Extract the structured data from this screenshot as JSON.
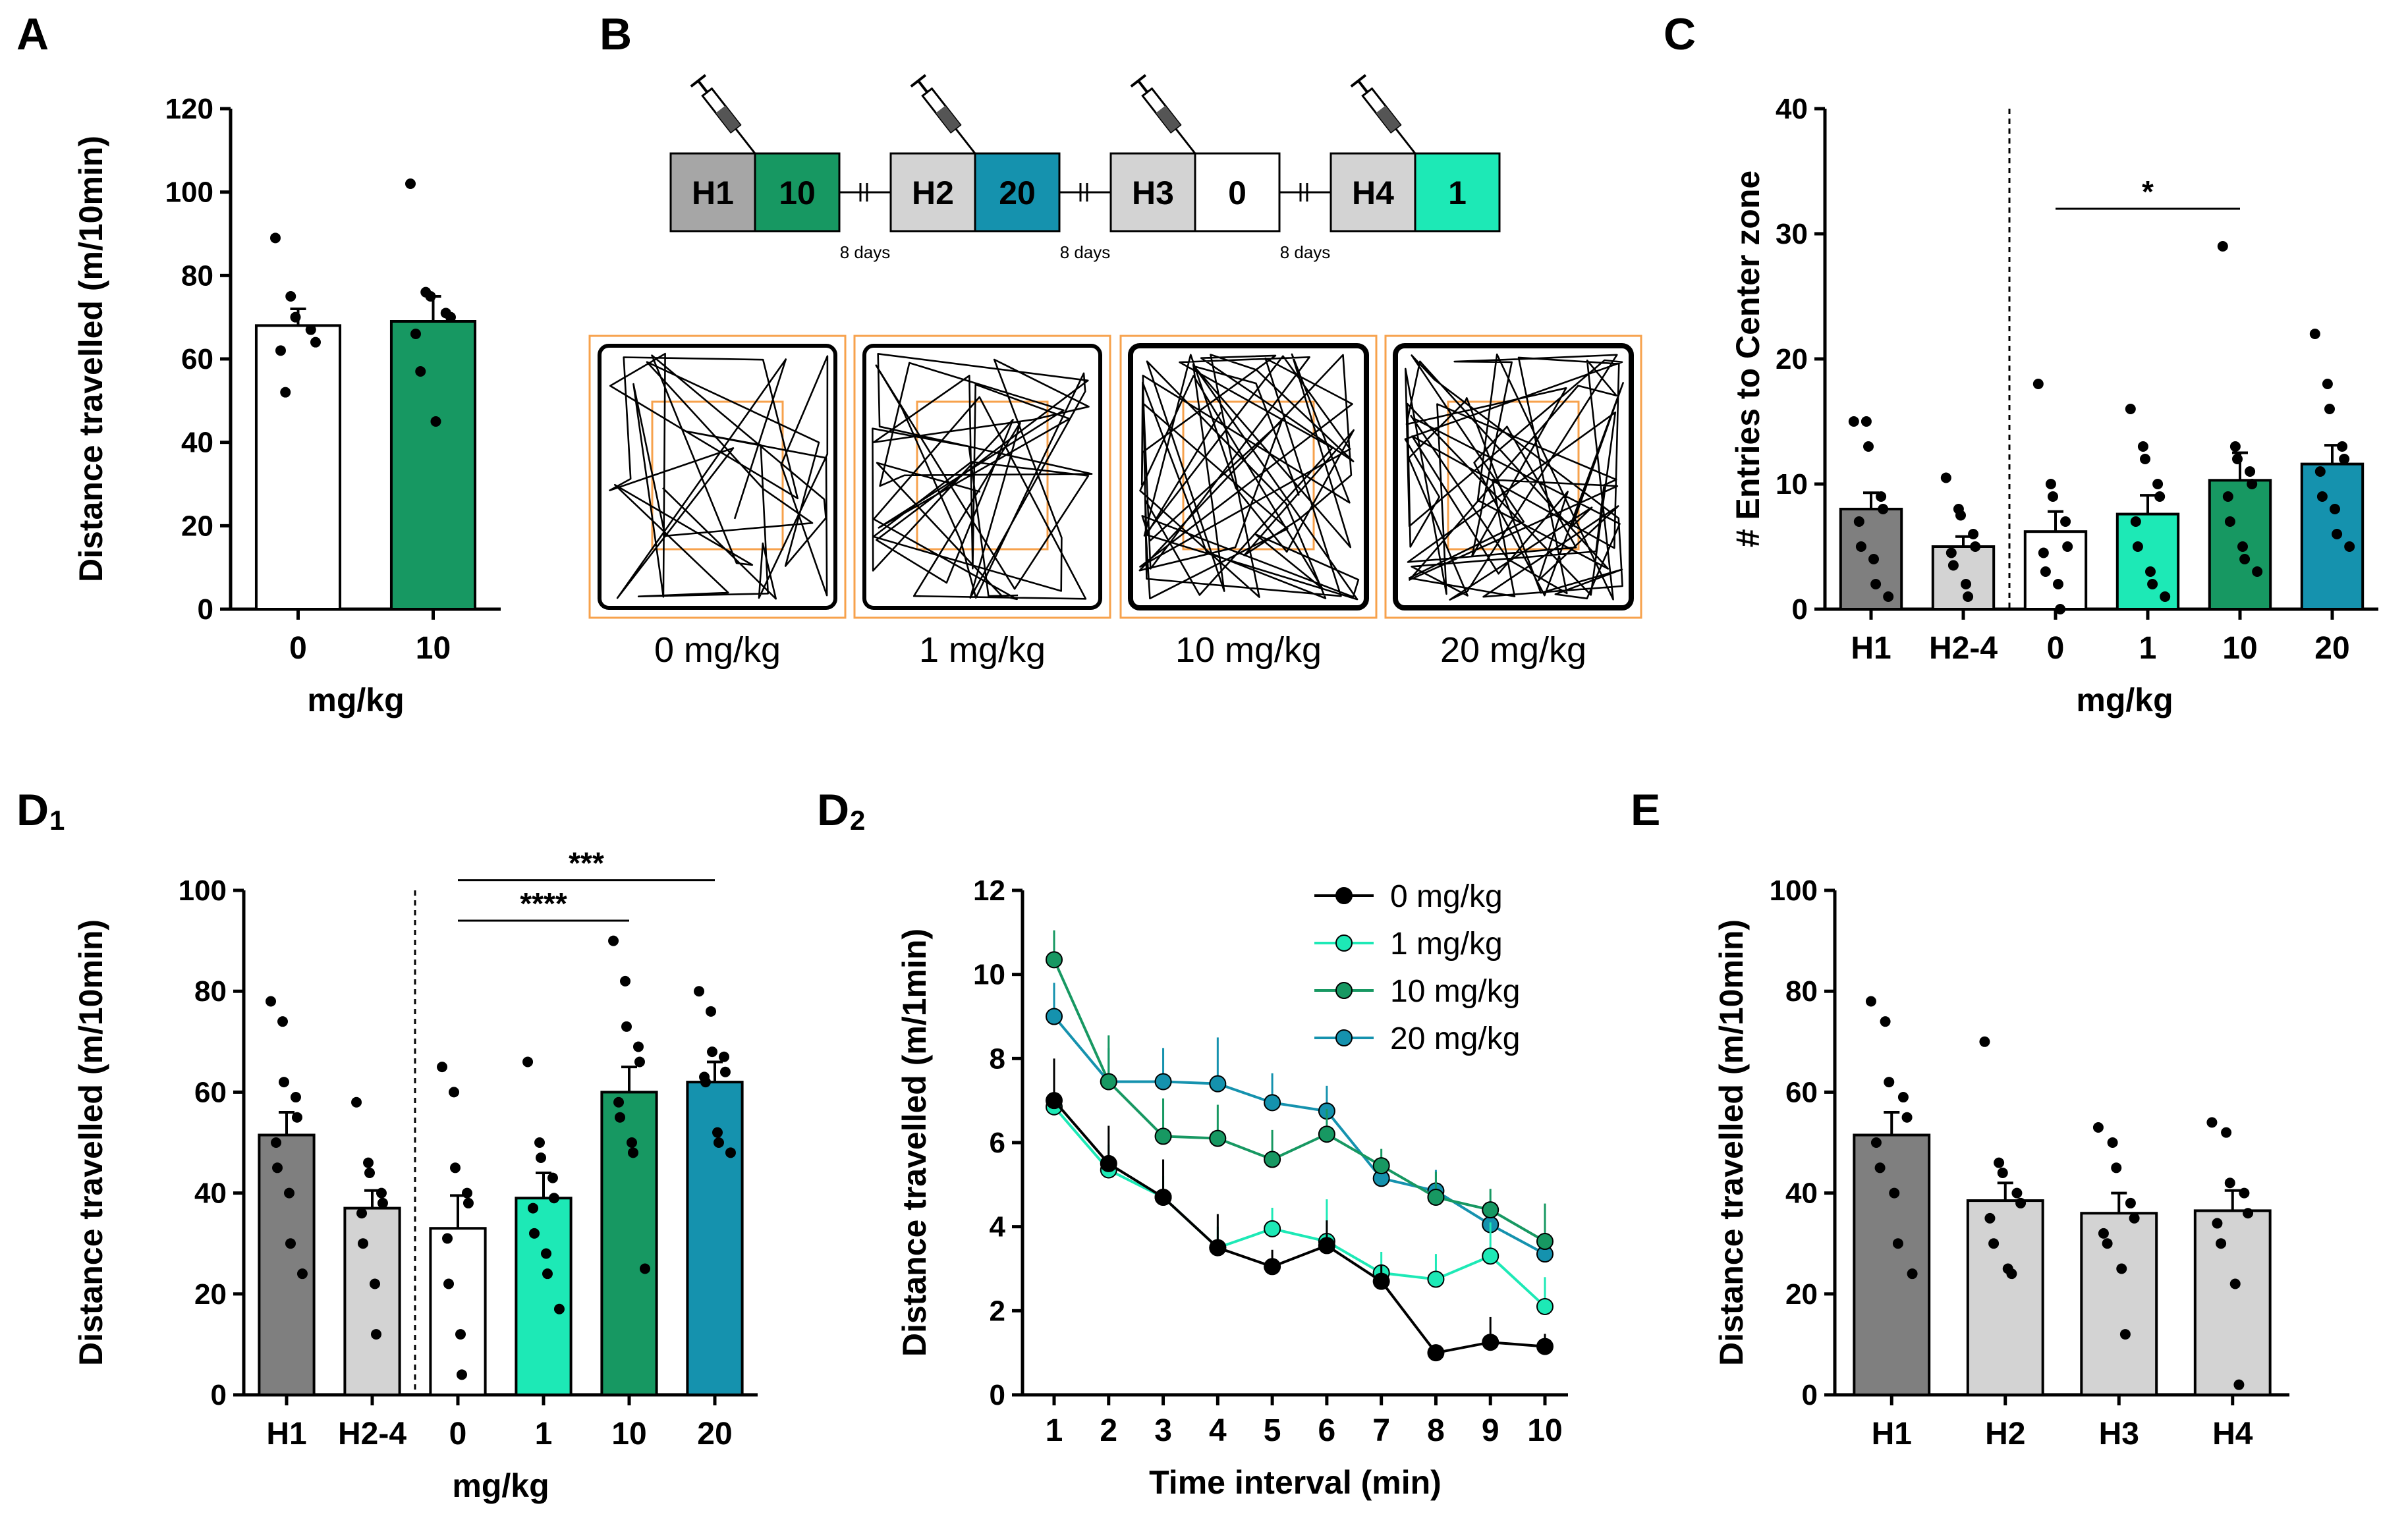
{
  "colors": {
    "H1": "#7f7f7f",
    "H": "#d3d3d3",
    "dose0": "#ffffff",
    "dose1": "#1de9b6",
    "dose10": "#179862",
    "dose20": "#1592ae",
    "line0": "#000000",
    "orange": "#f7a24c"
  },
  "panel_labels": {
    "A": "A",
    "B": "B",
    "C": "C",
    "D1": "D",
    "D1_sub": "1",
    "D2": "D",
    "D2_sub": "2",
    "E": "E"
  },
  "timeline": {
    "blocks": [
      {
        "habituation": "H1",
        "dose": "10",
        "dose_key": "dose10"
      },
      {
        "habituation": "H2",
        "dose": "20",
        "dose_key": "dose20"
      },
      {
        "habituation": "H3",
        "dose": "0",
        "dose_key": "dose0"
      },
      {
        "habituation": "H4",
        "dose": "1",
        "dose_key": "dose1"
      }
    ],
    "interval": "8 days",
    "syringe_icon": "syringe-icon",
    "track_labels": [
      "0 mg/kg",
      "1 mg/kg",
      "10 mg/kg",
      "20 mg/kg"
    ]
  },
  "chart_data": [
    {
      "id": "A",
      "type": "bar",
      "categories": [
        "0",
        "10"
      ],
      "values": [
        68,
        69
      ],
      "errors": [
        4,
        6
      ],
      "points": [
        [
          89,
          75,
          70,
          67,
          64,
          62,
          52
        ],
        [
          102,
          76,
          75,
          71,
          70,
          66,
          57,
          45
        ]
      ],
      "colors": [
        "dose0",
        "dose10"
      ],
      "ylabel": "Distance travelled (m/10min)",
      "xlabel": "mg/kg",
      "ylim": [
        0,
        120
      ],
      "yticks": [
        0,
        20,
        40,
        60,
        80,
        100,
        120
      ]
    },
    {
      "id": "C",
      "type": "bar",
      "categories": [
        "H1",
        "H2-4",
        "0",
        "1",
        "10",
        "20"
      ],
      "values": [
        8,
        5,
        6.2,
        7.6,
        10.3,
        11.6
      ],
      "errors": [
        1.3,
        0.8,
        1.6,
        1.5,
        2.2,
        1.5
      ],
      "points": [
        [
          15,
          15,
          13,
          9,
          8,
          7,
          5,
          4,
          2,
          1
        ],
        [
          10.5,
          8,
          7.5,
          6,
          5,
          4.5,
          3.5,
          2,
          1
        ],
        [
          18,
          10,
          9,
          7,
          5,
          4.5,
          3,
          2,
          0
        ],
        [
          16,
          13,
          12,
          10,
          9,
          7,
          5,
          3,
          2,
          1
        ],
        [
          29,
          13,
          12,
          11,
          10,
          9,
          7,
          5,
          4,
          3
        ],
        [
          22,
          18,
          16,
          13,
          12,
          11,
          9,
          8,
          6,
          5
        ]
      ],
      "colors": [
        "H1",
        "H",
        "dose0",
        "dose1",
        "dose10",
        "dose20"
      ],
      "ylabel": "# Entries to Center zone",
      "xlabel": "mg/kg",
      "ylim": [
        0,
        40
      ],
      "yticks": [
        0,
        10,
        20,
        30,
        40
      ],
      "divider_after": 2,
      "significance": [
        {
          "from": 2,
          "to": 4,
          "label": "*",
          "y": 32
        }
      ]
    },
    {
      "id": "D1",
      "type": "bar",
      "categories": [
        "H1",
        "H2-4",
        "0",
        "1",
        "10",
        "20"
      ],
      "values": [
        51.5,
        37,
        33,
        39,
        60,
        62
      ],
      "errors": [
        4.5,
        3.5,
        6.5,
        5,
        5,
        4
      ],
      "points": [
        [
          78,
          74,
          62,
          59,
          55,
          50,
          45,
          40,
          30,
          24
        ],
        [
          58,
          46,
          44,
          40,
          38,
          36,
          30,
          22,
          12
        ],
        [
          65,
          60,
          45,
          40,
          38,
          31,
          22,
          12,
          4
        ],
        [
          66,
          50,
          47,
          43,
          39,
          37,
          32,
          28,
          24,
          17
        ],
        [
          90,
          82,
          73,
          69,
          66,
          58,
          55,
          50,
          48,
          25
        ],
        [
          80,
          76,
          68,
          67,
          64,
          63,
          62,
          52,
          50,
          48
        ]
      ],
      "colors": [
        "H1",
        "H",
        "dose0",
        "dose1",
        "dose10",
        "dose20"
      ],
      "ylabel": "Distance travelled (m/10min)",
      "xlabel": "mg/kg",
      "ylim": [
        0,
        100
      ],
      "yticks": [
        0,
        20,
        40,
        60,
        80,
        100
      ],
      "divider_after": 2,
      "significance": [
        {
          "from": 2,
          "to": 4,
          "label": "****",
          "y": 94
        },
        {
          "from": 2,
          "to": 5,
          "label": "***",
          "y": 102
        }
      ]
    },
    {
      "id": "D2",
      "type": "line",
      "x": [
        1,
        2,
        3,
        4,
        5,
        6,
        7,
        8,
        9,
        10
      ],
      "series": [
        {
          "name": "0 mg/kg",
          "color": "line0",
          "values": [
            7.0,
            5.5,
            4.7,
            3.5,
            3.05,
            3.55,
            2.7,
            1.0,
            1.25,
            1.15
          ],
          "errors": [
            1.0,
            0.9,
            0.9,
            0.8,
            0.4,
            0.6,
            0.4,
            0.2,
            0.6,
            0.3
          ]
        },
        {
          "name": "1 mg/kg",
          "color": "dose1",
          "values": [
            6.85,
            5.35,
            4.7,
            3.5,
            3.95,
            3.65,
            2.9,
            2.75,
            3.3,
            2.1
          ],
          "errors": [
            0.7,
            0.6,
            0.5,
            0.5,
            0.5,
            1.0,
            0.5,
            0.6,
            0.8,
            0.7
          ]
        },
        {
          "name": "10 mg/kg",
          "color": "dose10",
          "values": [
            10.35,
            7.45,
            6.15,
            6.1,
            5.6,
            6.2,
            5.45,
            4.7,
            4.4,
            3.65
          ],
          "errors": [
            0.7,
            1.1,
            0.9,
            0.8,
            0.7,
            0.6,
            0.4,
            0.6,
            0.5,
            0.9
          ]
        },
        {
          "name": "20 mg/kg",
          "color": "dose20",
          "values": [
            9.0,
            7.45,
            7.45,
            7.4,
            6.95,
            6.75,
            5.15,
            4.85,
            4.05,
            3.35
          ],
          "errors": [
            0.8,
            0.8,
            0.8,
            1.1,
            0.7,
            0.6,
            0.5,
            0.5,
            0.5,
            0.6
          ]
        }
      ],
      "ylabel": "Distance travelled (m/1min)",
      "xlabel": "Time interval (min)",
      "ylim": [
        0,
        12
      ],
      "yticks": [
        0,
        2,
        4,
        6,
        8,
        10,
        12
      ],
      "legend": "top-right"
    },
    {
      "id": "E",
      "type": "bar",
      "categories": [
        "H1",
        "H2",
        "H3",
        "H4"
      ],
      "values": [
        51.5,
        38.5,
        36,
        36.5
      ],
      "errors": [
        4.5,
        3.5,
        4,
        4
      ],
      "points": [
        [
          78,
          74,
          62,
          59,
          55,
          50,
          45,
          40,
          30,
          24
        ],
        [
          70,
          46,
          44,
          40,
          38,
          35,
          30,
          25,
          24
        ],
        [
          53,
          50,
          45,
          38,
          35,
          32,
          30,
          25,
          12
        ],
        [
          54,
          52,
          42,
          40,
          36,
          34,
          30,
          22,
          2
        ]
      ],
      "colors": [
        "H1",
        "H",
        "H",
        "H"
      ],
      "ylabel": "Distance travelled (m/10min)",
      "xlabel": "",
      "ylim": [
        0,
        100
      ],
      "yticks": [
        0,
        20,
        40,
        60,
        80,
        100
      ]
    }
  ]
}
